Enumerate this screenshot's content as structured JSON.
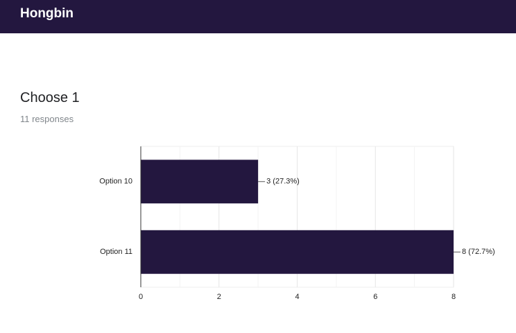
{
  "header": {
    "title": "Hongbin"
  },
  "question": {
    "title": "Choose 1",
    "responses": "11 responses"
  },
  "chart_data": {
    "type": "bar",
    "orientation": "horizontal",
    "categories": [
      "Option 10",
      "Option 11"
    ],
    "values": [
      3,
      8
    ],
    "value_labels": [
      "3 (27.3%)",
      "8 (72.7%)"
    ],
    "color": "#23173f",
    "xlim": [
      0,
      8
    ],
    "xticks": [
      0,
      2,
      4,
      6,
      8
    ],
    "minor_xticks": [
      1,
      3,
      5,
      7
    ],
    "grid": true
  }
}
